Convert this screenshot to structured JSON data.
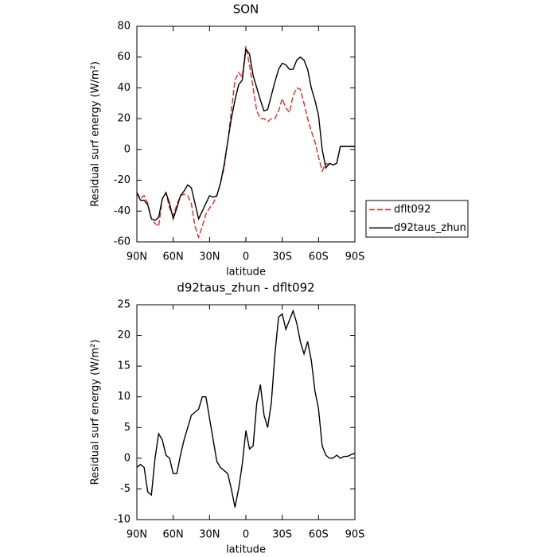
{
  "chart_data": [
    {
      "type": "line",
      "title": "SON",
      "xlabel": "latitude",
      "ylabel": "Residual surf energy (W/m²)",
      "x": [
        90,
        87,
        84,
        81,
        78,
        75,
        72,
        69,
        66,
        63,
        60,
        57,
        54,
        51,
        48,
        45,
        42,
        39,
        36,
        33,
        30,
        27,
        24,
        21,
        18,
        15,
        12,
        9,
        6,
        3,
        0,
        -3,
        -6,
        -9,
        -12,
        -15,
        -18,
        -21,
        -24,
        -27,
        -30,
        -33,
        -36,
        -39,
        -42,
        -45,
        -48,
        -51,
        -54,
        -57,
        -60,
        -63,
        -66,
        -69,
        -72,
        -75,
        -78,
        -81,
        -84,
        -87,
        -90
      ],
      "series": [
        {
          "name": "dflt092",
          "color": "#e8251f",
          "dash": true,
          "values": [
            -28,
            -32,
            -30,
            -35,
            -45,
            -48,
            -50,
            -32,
            -28,
            -38,
            -43,
            -36,
            -30,
            -29,
            -30,
            -35,
            -50,
            -57,
            -50,
            -42,
            -38,
            -35,
            -30,
            -22,
            -12,
            5,
            25,
            45,
            50,
            47,
            67,
            55,
            40,
            25,
            20,
            20,
            18,
            20,
            20,
            25,
            33,
            27,
            24,
            35,
            40,
            39,
            30,
            20,
            12,
            5,
            -5,
            -14,
            -9,
            -10,
            -10,
            -9,
            2,
            2,
            2,
            2,
            2
          ]
        },
        {
          "name": "d92taus_zhun",
          "color": "#000000",
          "dash": false,
          "values": [
            -28,
            -33,
            -33,
            -36,
            -45,
            -46,
            -44,
            -32,
            -28,
            -35,
            -45,
            -38,
            -30,
            -27,
            -23,
            -25,
            -35,
            -45,
            -40,
            -35,
            -30,
            -31,
            -30,
            -22,
            -10,
            5,
            20,
            32,
            42,
            45,
            65,
            62,
            48,
            40,
            32,
            25,
            26,
            35,
            44,
            52,
            56,
            55,
            52,
            52,
            58,
            60,
            58,
            52,
            40,
            32,
            22,
            0,
            -12,
            -9,
            -10,
            -9,
            2,
            2,
            2,
            2,
            2
          ]
        }
      ],
      "xlim": [
        90,
        -90
      ],
      "xticks": [
        {
          "value": 90,
          "label": "90N"
        },
        {
          "value": 60,
          "label": "60N"
        },
        {
          "value": 30,
          "label": "30N"
        },
        0,
        {
          "value": -30,
          "label": "30S"
        },
        {
          "value": -60,
          "label": "60S"
        },
        {
          "value": -90,
          "label": "90S"
        }
      ],
      "ylim": [
        -60,
        80
      ],
      "yticks": [
        -60,
        -40,
        -20,
        0,
        20,
        40,
        60,
        80
      ],
      "legend": "outside-right"
    },
    {
      "type": "line",
      "title": "d92taus_zhun - dflt092",
      "xlabel": "latitude",
      "ylabel": "Residual surf energy (W/m²)",
      "x": [
        90,
        87,
        84,
        81,
        78,
        75,
        72,
        69,
        66,
        63,
        60,
        57,
        54,
        51,
        48,
        45,
        42,
        39,
        36,
        33,
        30,
        27,
        24,
        21,
        18,
        15,
        12,
        9,
        6,
        3,
        0,
        -3,
        -6,
        -9,
        -12,
        -15,
        -18,
        -21,
        -24,
        -27,
        -30,
        -33,
        -36,
        -39,
        -42,
        -45,
        -48,
        -51,
        -54,
        -57,
        -60,
        -63,
        -66,
        -69,
        -72,
        -75,
        -78,
        -81,
        -84,
        -87,
        -90
      ],
      "series": [
        {
          "color": "#000000",
          "dash": false,
          "values": [
            -1.5,
            -1,
            -1.5,
            -5.5,
            -6,
            0,
            4,
            3,
            0.5,
            0,
            -2.5,
            -2.5,
            0.5,
            3,
            5,
            7,
            7.5,
            8,
            10,
            10,
            6.5,
            3,
            -0.5,
            -1.5,
            -2,
            -2.5,
            -5,
            -8,
            -5,
            -1,
            4.5,
            1.5,
            2,
            9,
            12,
            7,
            5,
            9,
            17,
            23,
            23.5,
            21,
            22.5,
            24,
            22,
            19,
            17,
            19,
            16,
            11,
            8,
            2,
            0.5,
            0,
            0,
            0.5,
            0,
            0.3,
            0.3,
            0.6,
            0.8
          ]
        }
      ],
      "xlim": [
        90,
        -90
      ],
      "xticks": [
        {
          "value": 90,
          "label": "90N"
        },
        {
          "value": 60,
          "label": "60N"
        },
        {
          "value": 30,
          "label": "30N"
        },
        0,
        {
          "value": -30,
          "label": "30S"
        },
        {
          "value": -60,
          "label": "60S"
        },
        {
          "value": -90,
          "label": "90S"
        }
      ],
      "ylim": [
        -10,
        25
      ],
      "yticks": [
        -10,
        -5,
        0,
        5,
        10,
        15,
        20,
        25
      ]
    }
  ]
}
